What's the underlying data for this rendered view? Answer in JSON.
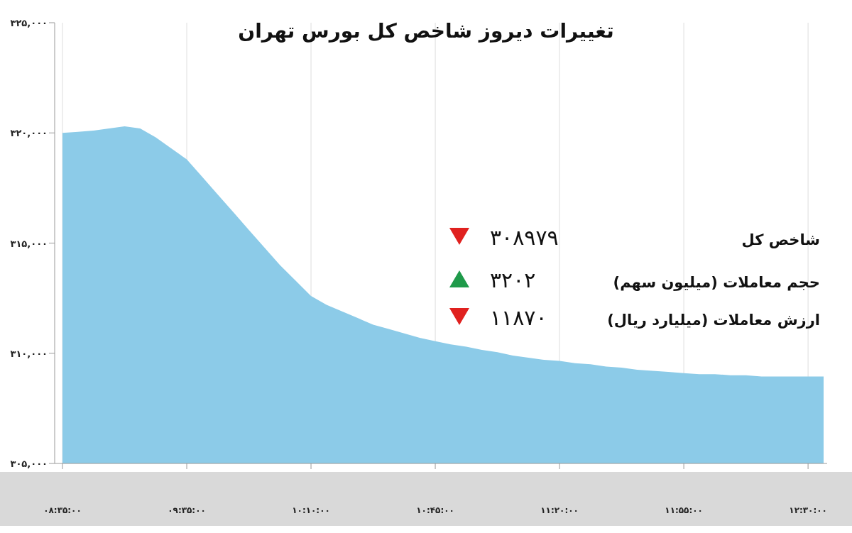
{
  "chart_data": {
    "type": "area",
    "title": "تغییرات دیروز شاخص کل بورس تهران",
    "categories": [
      "۰۸:۳۵:۰۰",
      null,
      null,
      null,
      null,
      null,
      null,
      null,
      "۰۹:۳۵:۰۰",
      null,
      null,
      null,
      null,
      null,
      null,
      null,
      "۱۰:۱۰:۰۰",
      null,
      null,
      null,
      null,
      null,
      null,
      null,
      "۱۰:۴۵:۰۰",
      null,
      null,
      null,
      null,
      null,
      null,
      null,
      "۱۱:۲۰:۰۰",
      null,
      null,
      null,
      null,
      null,
      null,
      null,
      "۱۱:۵۵:۰۰",
      null,
      null,
      null,
      null,
      null,
      null,
      null,
      "۱۲:۳۰:۰۰",
      null
    ],
    "series": [
      {
        "color": "#8ccbe8",
        "values": [
          320000,
          320050,
          320100,
          320200,
          320300,
          320200,
          319800,
          319300,
          318800,
          318000,
          317200,
          316400,
          315600,
          314800,
          314000,
          313300,
          312600,
          312200,
          311900,
          311600,
          311300,
          311100,
          310900,
          310700,
          310550,
          310400,
          310300,
          310150,
          310050,
          309900,
          309800,
          309700,
          309650,
          309550,
          309500,
          309400,
          309350,
          309250,
          309200,
          309150,
          309100,
          309050,
          309050,
          309000,
          309000,
          308950,
          308950,
          308950,
          308950,
          308950
        ]
      }
    ],
    "ylim": [
      305000,
      325000
    ],
    "yticks": [
      {
        "value": 305000,
        "label": "۳۰۵,۰۰۰"
      },
      {
        "value": 310000,
        "label": "۳۱۰,۰۰۰"
      },
      {
        "value": 315000,
        "label": "۳۱۵,۰۰۰"
      },
      {
        "value": 320000,
        "label": "۳۲۰,۰۰۰"
      },
      {
        "value": 325000,
        "label": "۳۲۵,۰۰۰"
      }
    ],
    "grid": "x",
    "annotations": [
      "شاخص کل",
      "۳۰۸۹۷۹",
      "حجم معاملات (میلیون سهم)",
      "۳۲۰۲",
      "ارزش معاملات (میلیارد ریال)",
      "۱۱۸۷۰"
    ]
  }
}
